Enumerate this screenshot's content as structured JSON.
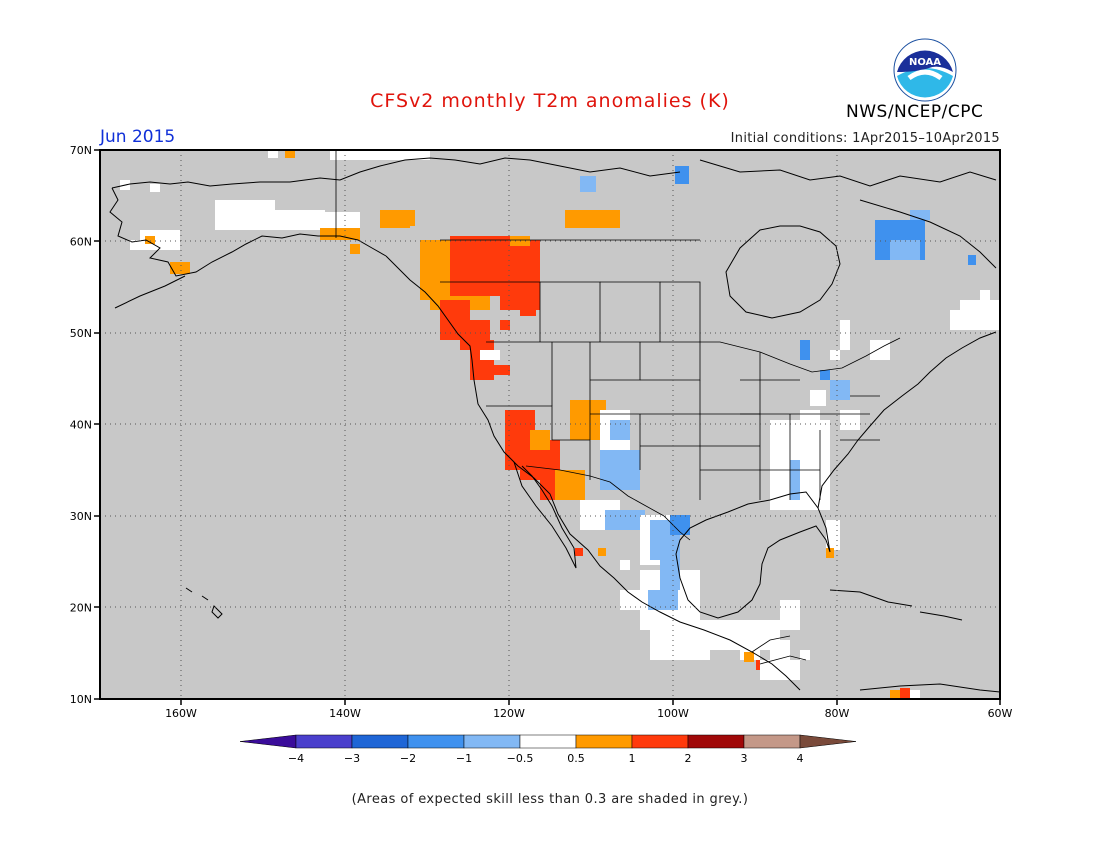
{
  "header": {
    "title": "CFSv2 monthly T2m anomalies (K)",
    "month": "Jun 2015",
    "initial_conditions": "Initial conditions: 1Apr2015–10Apr2015",
    "agency": "NWS/NCEP/CPC",
    "logo_text": "NOAA"
  },
  "map": {
    "lat_labels": [
      "70N",
      "60N",
      "50N",
      "40N",
      "30N",
      "20N",
      "10N"
    ],
    "lon_labels": [
      "160W",
      "140W",
      "120W",
      "100W",
      "80W",
      "60W"
    ],
    "background_color": "#c8c8c8"
  },
  "legend": {
    "labels": [
      "−4",
      "−3",
      "−2",
      "−1",
      "−0.5",
      "0.5",
      "1",
      "2",
      "3",
      "4"
    ],
    "colors": [
      "#3a0c9a",
      "#4a3fcc",
      "#1f66d6",
      "#3f91ee",
      "#82b8f4",
      "#ffffff",
      "#ff9a00",
      "#ff3a0c",
      "#a00808",
      "#c49888",
      "#7a4a3a"
    ]
  },
  "footnote": "(Areas of expected skill less than 0.3 are shaded in grey.)"
}
